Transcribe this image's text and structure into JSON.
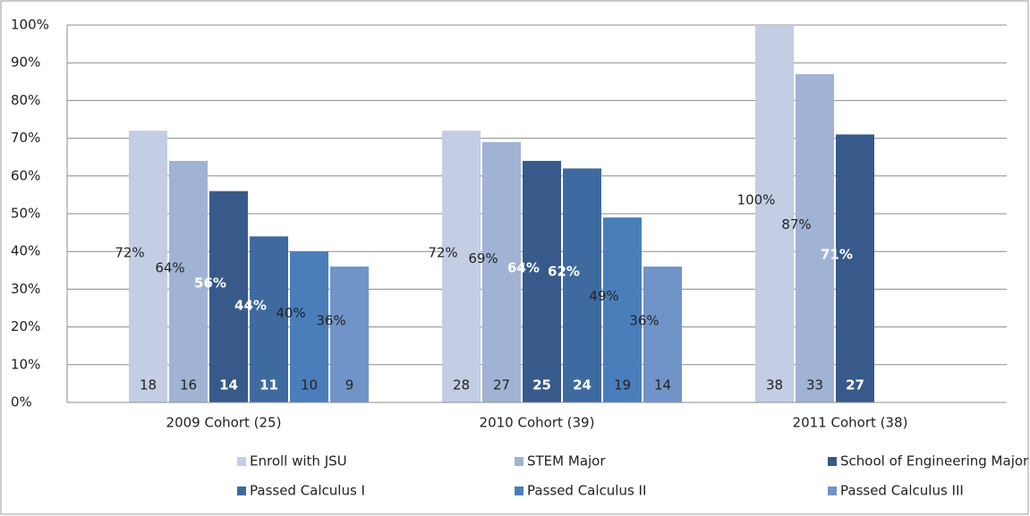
{
  "chart_data": {
    "type": "bar",
    "categories": [
      "2009 Cohort (25)",
      "2010 Cohort (39)",
      "2011 Cohort (38)"
    ],
    "series": [
      {
        "name": "Enroll with JSU",
        "color": "#c3cde3",
        "values": [
          72,
          72,
          100
        ],
        "value_labels": [
          "72%",
          "72%",
          "100%"
        ],
        "counts": [
          18,
          28,
          38
        ]
      },
      {
        "name": "STEM Major",
        "color": "#a1b3d4",
        "values": [
          64,
          69,
          87
        ],
        "value_labels": [
          "64%",
          "69%",
          "87%"
        ],
        "counts": [
          16,
          27,
          33
        ]
      },
      {
        "name": "School of Engineering Major",
        "color": "#375a8a",
        "values": [
          56,
          64,
          71
        ],
        "value_labels": [
          "56%",
          "64%",
          "71%"
        ],
        "counts": [
          14,
          25,
          27
        ]
      },
      {
        "name": "Passed Calculus I",
        "color": "#3e6aa0",
        "values": [
          44,
          62,
          null
        ],
        "value_labels": [
          "44%",
          "62%",
          null
        ],
        "counts": [
          11,
          24,
          null
        ]
      },
      {
        "name": "Passed Calculus II",
        "color": "#4a7ebb",
        "values": [
          40,
          49,
          null
        ],
        "value_labels": [
          "40%",
          "49%",
          null
        ],
        "counts": [
          10,
          19,
          null
        ]
      },
      {
        "name": "Passed Calculus III",
        "color": "#7094c8",
        "values": [
          36,
          36,
          null
        ],
        "value_labels": [
          "36%",
          "36%",
          null
        ],
        "counts": [
          9,
          14,
          null
        ]
      }
    ],
    "ylim": [
      0,
      100
    ],
    "yticks": [
      {
        "value": 0,
        "label": "0%"
      },
      {
        "value": 10,
        "label": "10%"
      },
      {
        "value": 20,
        "label": "20%"
      },
      {
        "value": 30,
        "label": "30%"
      },
      {
        "value": 40,
        "label": "40%"
      },
      {
        "value": 50,
        "label": "50%"
      },
      {
        "value": 60,
        "label": "60%"
      },
      {
        "value": 70,
        "label": "70%"
      },
      {
        "value": 80,
        "label": "80%"
      },
      {
        "value": 90,
        "label": "90%"
      },
      {
        "value": 100,
        "label": "100%"
      }
    ],
    "grid": true,
    "legend": "bottom"
  }
}
